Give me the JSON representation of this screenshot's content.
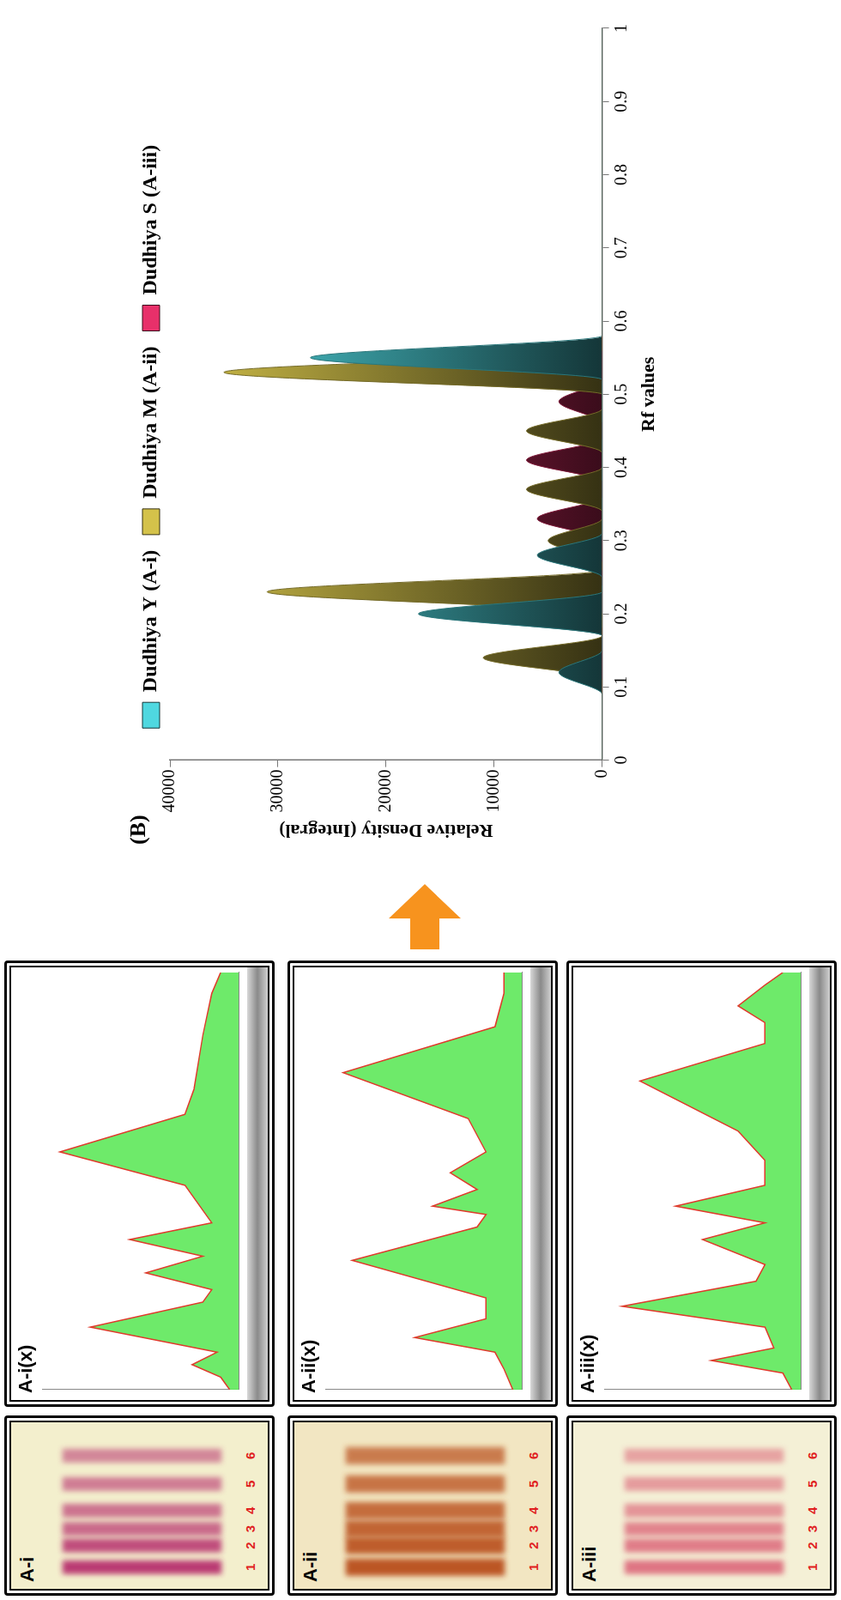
{
  "plates": [
    {
      "label": "A-i",
      "band_labels": [
        1,
        2,
        3,
        4,
        5,
        6
      ]
    },
    {
      "label": "A-ii",
      "band_labels": [
        1,
        2,
        3,
        4,
        5,
        6
      ]
    },
    {
      "label": "A-iii",
      "band_labels": [
        1,
        2,
        3,
        4,
        5,
        6
      ]
    }
  ],
  "chart_data": [
    {
      "type": "area",
      "title": "A-i(x)",
      "color": "#e0392b",
      "x": [
        0,
        0.03,
        0.06,
        0.09,
        0.15,
        0.21,
        0.24,
        0.28,
        0.32,
        0.36,
        0.4,
        0.49,
        0.57,
        0.66,
        0.72,
        0.85,
        0.95,
        1
      ],
      "values": [
        0.05,
        0.1,
        0.26,
        0.12,
        0.83,
        0.2,
        0.15,
        0.52,
        0.2,
        0.61,
        0.15,
        0.3,
        1.0,
        0.3,
        0.25,
        0.2,
        0.15,
        0.1
      ],
      "xlim": [
        0,
        1
      ],
      "ylim": [
        0,
        1.1
      ],
      "tick_labels": false,
      "grid": false
    },
    {
      "type": "area",
      "title": "A-ii(x)",
      "color": "#e0392b",
      "x": [
        0,
        0.05,
        0.09,
        0.125,
        0.17,
        0.22,
        0.31,
        0.39,
        0.42,
        0.44,
        0.48,
        0.52,
        0.57,
        0.65,
        0.76,
        0.87,
        0.95,
        1
      ],
      "values": [
        0.05,
        0.1,
        0.15,
        0.6,
        0.2,
        0.2,
        0.95,
        0.25,
        0.2,
        0.5,
        0.25,
        0.4,
        0.2,
        0.3,
        1.0,
        0.15,
        0.1,
        0.1
      ],
      "xlim": [
        0,
        1
      ],
      "ylim": [
        0,
        1.1
      ],
      "tick_labels": false,
      "grid": false
    },
    {
      "type": "area",
      "title": "A-iii(x)",
      "color": "#e0392b",
      "x": [
        0,
        0.04,
        0.07,
        0.1,
        0.15,
        0.2,
        0.26,
        0.3,
        0.36,
        0.4,
        0.44,
        0.49,
        0.55,
        0.62,
        0.74,
        0.83,
        0.88,
        0.92,
        0.97,
        1
      ],
      "values": [
        0.05,
        0.1,
        0.5,
        0.15,
        0.2,
        1.0,
        0.25,
        0.2,
        0.55,
        0.2,
        0.7,
        0.2,
        0.2,
        0.35,
        0.9,
        0.2,
        0.2,
        0.35,
        0.2,
        0.1
      ],
      "xlim": [
        0,
        1
      ],
      "ylim": [
        0,
        1.1
      ],
      "tick_labels": false,
      "grid": false
    },
    {
      "type": "area",
      "title": "(B)",
      "x_label": "Rf values",
      "y_label": "Relative Density (Integral)",
      "series": [
        {
          "name": "Dudhiya Y (A-i)",
          "color": "#4fd8e0",
          "x": [
            0,
            0.09,
            0.12,
            0.15,
            0.17,
            0.2,
            0.23,
            0.25,
            0.28,
            0.31,
            0.52,
            0.55,
            0.58,
            1
          ],
          "values": [
            0,
            0,
            4000,
            0,
            0,
            17000,
            0,
            0,
            6000,
            0,
            0,
            27000,
            0,
            0
          ]
        },
        {
          "name": "Dudhiya M (A-ii)",
          "color": "#d4c24a",
          "x": [
            0,
            0.11,
            0.14,
            0.17,
            0.2,
            0.23,
            0.26,
            0.27,
            0.3,
            0.33,
            0.34,
            0.37,
            0.4,
            0.42,
            0.45,
            0.48,
            0.5,
            0.53,
            0.56,
            1
          ],
          "values": [
            0,
            0,
            11000,
            0,
            0,
            31000,
            0,
            0,
            5000,
            0,
            0,
            7000,
            0,
            0,
            7000,
            0,
            0,
            35000,
            0,
            0
          ]
        },
        {
          "name": "Dudhiya S (A-iii)",
          "color": "#e8306a",
          "x": [
            0,
            0.18,
            0.21,
            0.24,
            0.3,
            0.33,
            0.36,
            0.38,
            0.41,
            0.44,
            0.46,
            0.49,
            0.52,
            1
          ],
          "values": [
            0,
            0,
            8000,
            0,
            0,
            6000,
            0,
            0,
            7000,
            0,
            0,
            4000,
            0,
            0
          ]
        }
      ],
      "xlim": [
        0,
        1
      ],
      "xticks": [
        0,
        0.1,
        0.2,
        0.3,
        0.4,
        0.5,
        0.6,
        0.7,
        0.8,
        0.9,
        1
      ],
      "ylim": [
        0,
        40000
      ],
      "yticks": [
        0,
        10000,
        20000,
        30000,
        40000
      ],
      "grid": false,
      "legend": "top"
    }
  ]
}
